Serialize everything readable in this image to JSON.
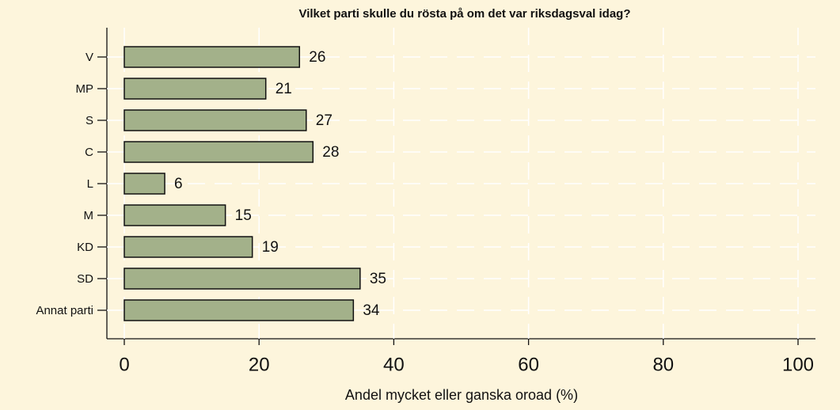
{
  "chart_data": {
    "type": "bar",
    "orientation": "horizontal",
    "title": "Vilket parti skulle du rösta på om det var riksdagsval idag?",
    "xlabel": "Andel mycket eller ganska oroad (%)",
    "categories": [
      "V",
      "MP",
      "S",
      "C",
      "L",
      "M",
      "KD",
      "SD",
      "Annat parti"
    ],
    "values": [
      26,
      21,
      27,
      28,
      6,
      15,
      19,
      35,
      34
    ],
    "color": "#a3b18a",
    "xlim": [
      0,
      100
    ],
    "xticks": [
      0,
      20,
      40,
      60,
      80,
      100
    ],
    "grid": true
  }
}
